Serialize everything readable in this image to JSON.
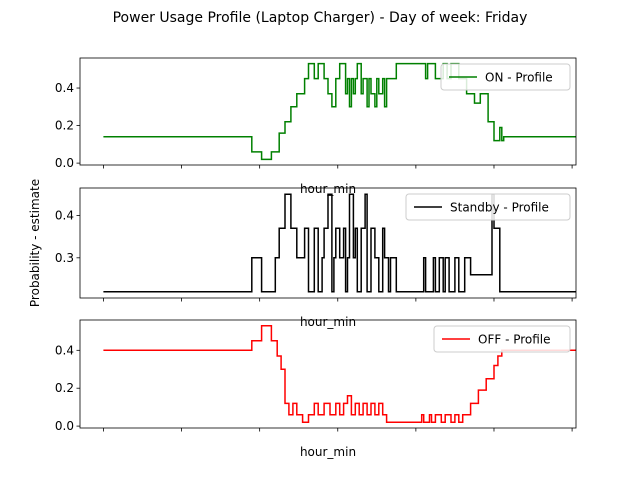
{
  "title": "Power Usage Profile (Laptop Charger) - Day of week: Friday",
  "ylabel": "Probability - estimate",
  "chart_data": [
    {
      "type": "line",
      "xlabel": "hour_min",
      "xlim": [
        -1.2,
        24.2
      ],
      "ylim": [
        -0.01,
        0.56
      ],
      "yticks": [
        "0.0",
        "0.2",
        "0.4"
      ],
      "ytick_values": [
        0.0,
        0.2,
        0.4
      ],
      "xticks": [
        0,
        4,
        8,
        12,
        16,
        20,
        24
      ],
      "grid": false,
      "legend": "top-right",
      "series": [
        {
          "name": "ON - Profile",
          "color": "#008000",
          "x": [
            0.0,
            7.6,
            7.6,
            8.1,
            8.1,
            8.6,
            8.6,
            9.0,
            9.0,
            9.3,
            9.3,
            9.6,
            9.6,
            9.9,
            9.9,
            10.3,
            10.3,
            10.5,
            10.5,
            10.8,
            10.8,
            11.0,
            11.0,
            11.3,
            11.3,
            11.5,
            11.5,
            11.7,
            11.7,
            11.9,
            11.9,
            12.1,
            12.1,
            12.4,
            12.4,
            12.5,
            12.5,
            12.6,
            12.6,
            12.7,
            12.7,
            12.8,
            12.8,
            12.9,
            12.9,
            13.0,
            13.0,
            13.2,
            13.2,
            13.3,
            13.3,
            13.5,
            13.5,
            13.6,
            13.6,
            13.7,
            13.7,
            13.9,
            13.9,
            14.0,
            14.0,
            14.1,
            14.1,
            14.3,
            14.3,
            14.4,
            14.4,
            14.5,
            14.5,
            14.7,
            14.7,
            15.0,
            15.0,
            16.5,
            16.5,
            16.6,
            16.6,
            16.7,
            16.7,
            17.0,
            17.0,
            17.4,
            17.4,
            17.6,
            17.6,
            17.8,
            17.8,
            18.2,
            18.2,
            18.6,
            18.6,
            19.0,
            19.0,
            19.3,
            19.3,
            19.7,
            19.7,
            20.0,
            20.0,
            20.3,
            20.3,
            20.4,
            20.4,
            20.5,
            20.5,
            24.5
          ],
          "y": [
            0.14,
            0.14,
            0.06,
            0.06,
            0.02,
            0.02,
            0.06,
            0.06,
            0.16,
            0.16,
            0.22,
            0.22,
            0.3,
            0.3,
            0.37,
            0.37,
            0.45,
            0.45,
            0.53,
            0.53,
            0.45,
            0.45,
            0.53,
            0.53,
            0.45,
            0.45,
            0.37,
            0.37,
            0.3,
            0.3,
            0.45,
            0.45,
            0.53,
            0.53,
            0.37,
            0.37,
            0.45,
            0.45,
            0.3,
            0.3,
            0.45,
            0.45,
            0.37,
            0.37,
            0.45,
            0.45,
            0.53,
            0.53,
            0.37,
            0.37,
            0.45,
            0.45,
            0.3,
            0.3,
            0.45,
            0.45,
            0.37,
            0.37,
            0.3,
            0.3,
            0.45,
            0.45,
            0.37,
            0.37,
            0.45,
            0.45,
            0.3,
            0.3,
            0.45,
            0.45,
            0.45,
            0.45,
            0.53,
            0.53,
            0.45,
            0.45,
            0.53,
            0.53,
            0.53,
            0.53,
            0.45,
            0.45,
            0.53,
            0.53,
            0.45,
            0.45,
            0.53,
            0.53,
            0.45,
            0.45,
            0.37,
            0.37,
            0.32,
            0.32,
            0.37,
            0.37,
            0.22,
            0.22,
            0.12,
            0.12,
            0.19,
            0.19,
            0.12,
            0.12,
            0.14,
            0.14
          ]
        }
      ]
    },
    {
      "type": "line",
      "xlabel": "hour_min",
      "xlim": [
        -1.2,
        24.2
      ],
      "ylim": [
        0.205,
        0.465
      ],
      "yticks": [
        "0.3",
        "0.4"
      ],
      "ytick_values": [
        0.3,
        0.4
      ],
      "xticks": [
        0,
        4,
        8,
        12,
        16,
        20,
        24
      ],
      "grid": false,
      "legend": "top-right",
      "series": [
        {
          "name": "Standby - Profile",
          "color": "#000000",
          "x": [
            0.0,
            7.6,
            7.6,
            8.1,
            8.1,
            8.8,
            8.8,
            9.0,
            9.0,
            9.3,
            9.3,
            9.6,
            9.6,
            9.9,
            9.9,
            10.3,
            10.3,
            10.5,
            10.5,
            10.8,
            10.8,
            11.0,
            11.0,
            11.2,
            11.2,
            11.3,
            11.3,
            11.5,
            11.5,
            11.7,
            11.7,
            11.8,
            11.8,
            11.9,
            11.9,
            12.1,
            12.1,
            12.3,
            12.3,
            12.4,
            12.4,
            12.5,
            12.5,
            12.6,
            12.6,
            12.8,
            12.8,
            12.9,
            12.9,
            13.0,
            13.0,
            13.2,
            13.2,
            13.4,
            13.4,
            13.5,
            13.5,
            13.7,
            13.7,
            13.9,
            13.9,
            14.1,
            14.1,
            14.3,
            14.3,
            14.4,
            14.4,
            14.6,
            14.6,
            14.7,
            14.7,
            15.0,
            15.0,
            16.4,
            16.4,
            16.5,
            16.5,
            16.9,
            16.9,
            17.0,
            17.0,
            17.2,
            17.2,
            17.4,
            17.4,
            17.5,
            17.5,
            17.7,
            17.7,
            18.0,
            18.0,
            18.2,
            18.2,
            18.5,
            18.5,
            18.8,
            18.8,
            19.9,
            19.9,
            20.0,
            20.0,
            20.3,
            20.3,
            24.5
          ],
          "y": [
            0.22,
            0.22,
            0.3,
            0.3,
            0.22,
            0.22,
            0.3,
            0.3,
            0.37,
            0.37,
            0.45,
            0.45,
            0.37,
            0.37,
            0.3,
            0.3,
            0.37,
            0.37,
            0.22,
            0.22,
            0.37,
            0.37,
            0.22,
            0.22,
            0.3,
            0.3,
            0.37,
            0.37,
            0.45,
            0.45,
            0.22,
            0.22,
            0.3,
            0.3,
            0.37,
            0.37,
            0.3,
            0.3,
            0.37,
            0.37,
            0.22,
            0.22,
            0.3,
            0.3,
            0.45,
            0.45,
            0.3,
            0.3,
            0.37,
            0.37,
            0.22,
            0.22,
            0.37,
            0.37,
            0.45,
            0.45,
            0.22,
            0.22,
            0.37,
            0.37,
            0.3,
            0.3,
            0.22,
            0.22,
            0.37,
            0.37,
            0.3,
            0.3,
            0.22,
            0.22,
            0.3,
            0.3,
            0.22,
            0.22,
            0.3,
            0.3,
            0.22,
            0.22,
            0.3,
            0.3,
            0.22,
            0.22,
            0.3,
            0.3,
            0.22,
            0.22,
            0.3,
            0.3,
            0.22,
            0.22,
            0.3,
            0.3,
            0.22,
            0.22,
            0.3,
            0.3,
            0.26,
            0.26,
            0.45,
            0.45,
            0.37,
            0.37,
            0.22,
            0.22
          ]
        }
      ]
    },
    {
      "type": "line",
      "xlabel": "hour_min",
      "xlim": [
        -1.2,
        24.2
      ],
      "ylim": [
        -0.01,
        0.56
      ],
      "yticks": [
        "0.0",
        "0.2",
        "0.4"
      ],
      "ytick_values": [
        0.0,
        0.2,
        0.4
      ],
      "xticks": [
        0,
        4,
        8,
        12,
        16,
        20,
        24
      ],
      "grid": false,
      "legend": "top-right",
      "series": [
        {
          "name": "OFF - Profile",
          "color": "#ff0000",
          "x": [
            0.0,
            7.6,
            7.6,
            8.1,
            8.1,
            8.6,
            8.6,
            8.9,
            8.9,
            9.1,
            9.1,
            9.3,
            9.3,
            9.5,
            9.5,
            9.7,
            9.7,
            9.9,
            9.9,
            10.2,
            10.2,
            10.5,
            10.5,
            10.8,
            10.8,
            11.0,
            11.0,
            11.3,
            11.3,
            11.6,
            11.6,
            11.9,
            11.9,
            12.1,
            12.1,
            12.3,
            12.3,
            12.5,
            12.5,
            12.7,
            12.7,
            12.9,
            12.9,
            13.1,
            13.1,
            13.3,
            13.3,
            13.5,
            13.5,
            13.7,
            13.7,
            13.9,
            13.9,
            14.1,
            14.1,
            14.3,
            14.3,
            14.5,
            14.5,
            14.7,
            14.7,
            16.3,
            16.3,
            16.4,
            16.4,
            16.7,
            16.7,
            16.8,
            16.8,
            17.0,
            17.0,
            17.3,
            17.3,
            17.5,
            17.5,
            17.8,
            17.8,
            18.0,
            18.0,
            18.2,
            18.2,
            18.4,
            18.4,
            18.8,
            18.8,
            19.2,
            19.2,
            19.6,
            19.6,
            20.0,
            20.0,
            20.2,
            20.2,
            20.4,
            20.4,
            24.5
          ],
          "y": [
            0.4,
            0.4,
            0.45,
            0.45,
            0.53,
            0.53,
            0.45,
            0.45,
            0.37,
            0.37,
            0.3,
            0.3,
            0.12,
            0.12,
            0.06,
            0.06,
            0.12,
            0.12,
            0.06,
            0.06,
            0.02,
            0.02,
            0.06,
            0.06,
            0.12,
            0.12,
            0.06,
            0.06,
            0.12,
            0.12,
            0.06,
            0.06,
            0.12,
            0.12,
            0.06,
            0.06,
            0.12,
            0.12,
            0.16,
            0.16,
            0.06,
            0.06,
            0.12,
            0.12,
            0.06,
            0.06,
            0.12,
            0.12,
            0.06,
            0.06,
            0.12,
            0.12,
            0.06,
            0.06,
            0.12,
            0.12,
            0.06,
            0.06,
            0.02,
            0.02,
            0.02,
            0.02,
            0.06,
            0.06,
            0.02,
            0.02,
            0.06,
            0.06,
            0.02,
            0.02,
            0.06,
            0.06,
            0.02,
            0.02,
            0.06,
            0.06,
            0.02,
            0.02,
            0.06,
            0.06,
            0.02,
            0.02,
            0.06,
            0.06,
            0.12,
            0.12,
            0.19,
            0.19,
            0.25,
            0.25,
            0.32,
            0.32,
            0.37,
            0.37,
            0.4,
            0.4
          ]
        }
      ]
    }
  ]
}
